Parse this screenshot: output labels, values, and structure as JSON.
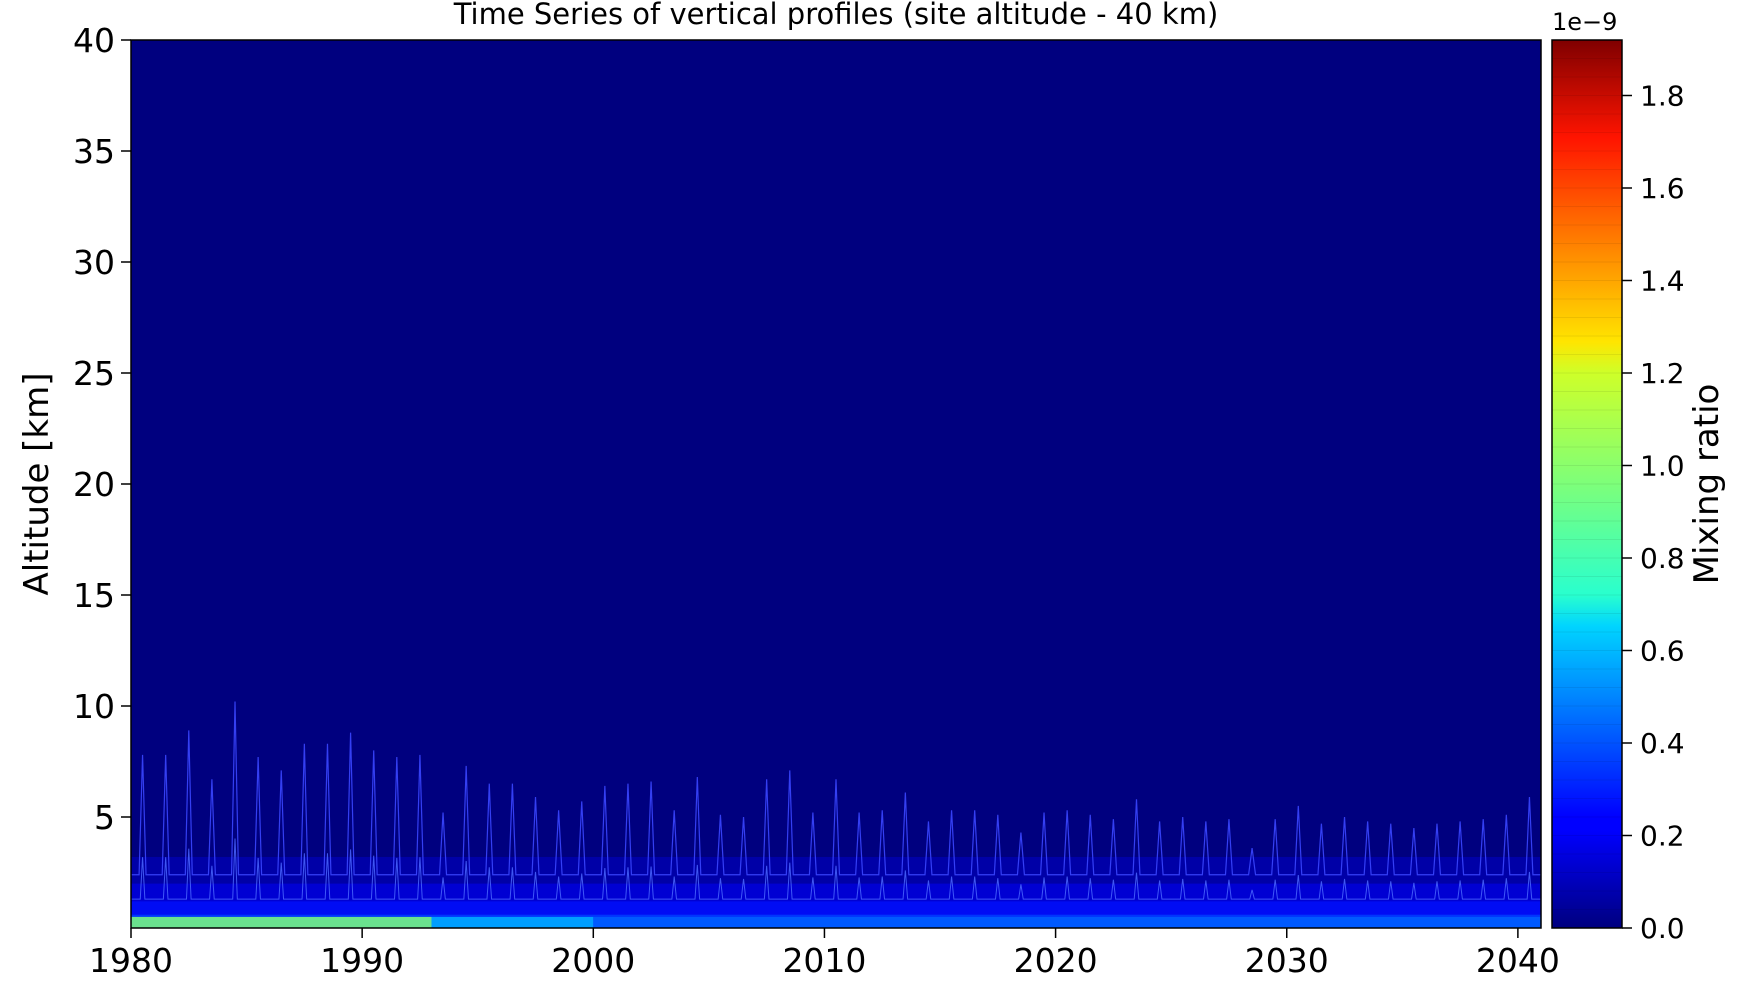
{
  "chart_data": {
    "type": "heatmap",
    "title": "Time Series of vertical profiles (site altitude - 40 km)",
    "xlabel": "",
    "ylabel": "Altitude [km]",
    "xlim": [
      1980,
      2041
    ],
    "ylim": [
      0,
      40
    ],
    "xticks": [
      "1980",
      "1990",
      "2000",
      "2010",
      "2020",
      "2030",
      "2040"
    ],
    "yticks": [
      "5",
      "10",
      "15",
      "20",
      "25",
      "30",
      "35",
      "40"
    ],
    "colorbar": {
      "label": "Mixing ratio",
      "offset_text": "1e−9",
      "colormap": "jet",
      "range": [
        0.0,
        1.92
      ],
      "ticks": [
        "0.0",
        "0.2",
        "0.4",
        "0.6",
        "0.8",
        "1.0",
        "1.2",
        "1.4",
        "1.6",
        "1.8"
      ],
      "levels": 48
    },
    "background_color": "#00007f",
    "near_surface": {
      "altitude_km": 0.5,
      "max_value_e9_by_decade": [
        {
          "period": "1980-1993",
          "value": 1.2
        },
        {
          "period": "1993-2000",
          "value": 0.6
        },
        {
          "period": "2000-2041",
          "value": 0.4
        }
      ]
    },
    "seasonal_peak_altitude_km": {
      "years": [
        1980,
        1981,
        1982,
        1983,
        1984,
        1985,
        1986,
        1987,
        1988,
        1989,
        1990,
        1991,
        1992,
        1993,
        1994,
        1995,
        1996,
        1997,
        1998,
        1999,
        2000,
        2001,
        2002,
        2003,
        2004,
        2005,
        2006,
        2007,
        2008,
        2009,
        2010,
        2011,
        2012,
        2013,
        2014,
        2015,
        2016,
        2017,
        2018,
        2019,
        2020,
        2021,
        2022,
        2023,
        2024,
        2025,
        2026,
        2027,
        2028,
        2029,
        2030,
        2031,
        2032,
        2033,
        2034,
        2035,
        2036,
        2037,
        2038,
        2039,
        2040
      ],
      "values": [
        7.8,
        7.8,
        8.9,
        6.7,
        10.2,
        7.7,
        7.1,
        8.3,
        8.3,
        8.8,
        8.0,
        7.7,
        7.8,
        5.2,
        7.3,
        6.5,
        6.5,
        5.9,
        5.3,
        5.7,
        6.4,
        6.5,
        6.6,
        5.3,
        6.8,
        5.1,
        5.0,
        6.7,
        7.1,
        5.2,
        6.7,
        5.2,
        5.3,
        6.1,
        4.8,
        5.3,
        5.3,
        5.1,
        4.3,
        5.2,
        5.3,
        5.1,
        4.9,
        5.8,
        4.8,
        5.0,
        4.8,
        4.9,
        3.6,
        4.9,
        5.5,
        4.7,
        5.0,
        4.8,
        4.7,
        4.5,
        4.7,
        4.8,
        4.9,
        5.1,
        5.9
      ]
    }
  }
}
